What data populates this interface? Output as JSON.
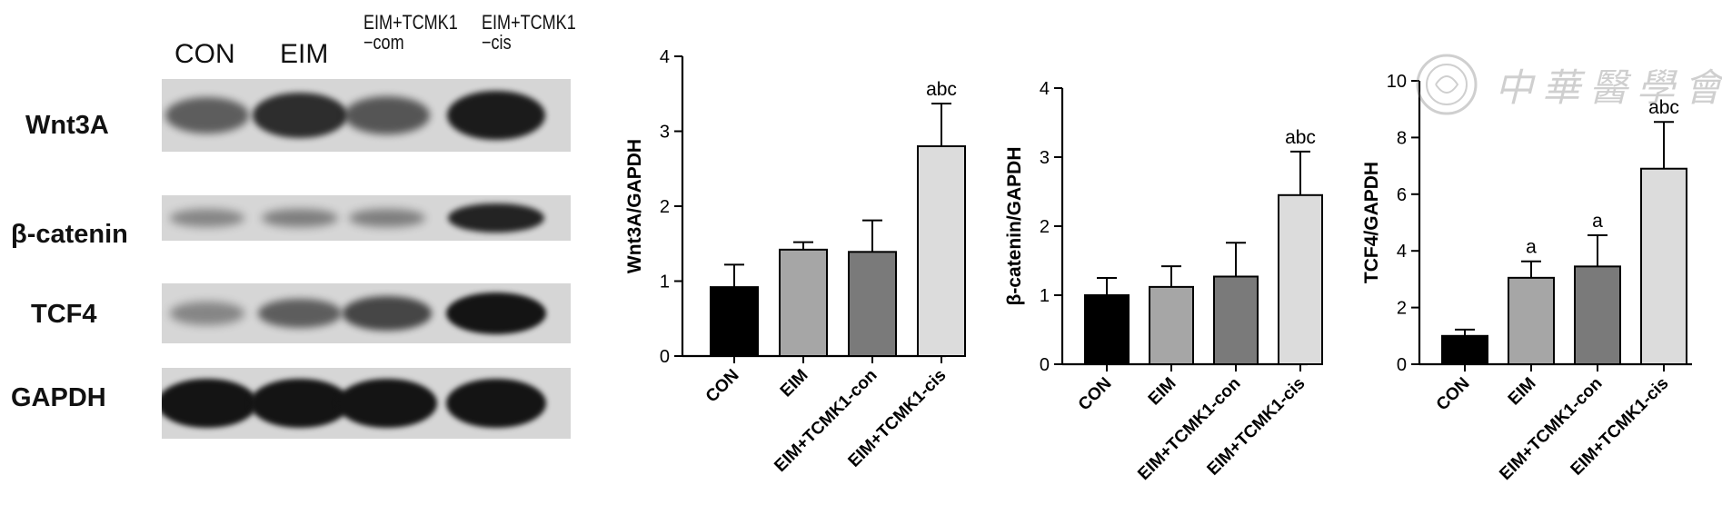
{
  "blot": {
    "lanes": [
      "CON",
      "EIM",
      "EIM+TCMK1\n−com",
      "EIM+TCMK1\n−cis"
    ],
    "rows": [
      {
        "label": "Wnt3A",
        "intensity": [
          0.55,
          0.85,
          0.6,
          0.95
        ]
      },
      {
        "label": "β-catenin",
        "intensity": [
          0.3,
          0.35,
          0.35,
          0.9
        ]
      },
      {
        "label": "TCF4",
        "intensity": [
          0.3,
          0.55,
          0.7,
          1.0
        ]
      },
      {
        "label": "GAPDH",
        "intensity": [
          1.0,
          1.0,
          1.0,
          1.0
        ]
      }
    ]
  },
  "watermark": {
    "text": "中華醫學會"
  },
  "chart_data": [
    {
      "type": "bar",
      "categories": [
        "CON",
        "EIM",
        "EIM+TCMK1-con",
        "EIM+TCMK1-cis"
      ],
      "values": [
        0.92,
        1.42,
        1.39,
        2.8
      ],
      "errors": [
        0.3,
        0.1,
        0.42,
        0.57
      ],
      "annotations": [
        "",
        "",
        "",
        "abc"
      ],
      "colors": [
        "#000000",
        "#a6a6a6",
        "#7a7a7a",
        "#dcdcdc"
      ],
      "ylabel": "Wnt3A/GAPDH",
      "ylim": [
        0,
        4
      ],
      "yticks": [
        "0",
        "1",
        "2",
        "3",
        "4"
      ]
    },
    {
      "type": "bar",
      "categories": [
        "CON",
        "EIM",
        "EIM+TCMK1-con",
        "EIM+TCMK1-cis"
      ],
      "values": [
        1.0,
        1.12,
        1.27,
        2.45
      ],
      "errors": [
        0.25,
        0.3,
        0.49,
        0.63
      ],
      "annotations": [
        "",
        "",
        "",
        "abc"
      ],
      "colors": [
        "#000000",
        "#a6a6a6",
        "#7a7a7a",
        "#dcdcdc"
      ],
      "ylabel": "β-catenin/GAPDH",
      "ylim": [
        0,
        4
      ],
      "yticks": [
        "0",
        "1",
        "2",
        "3",
        "4"
      ]
    },
    {
      "type": "bar",
      "categories": [
        "CON",
        "EIM",
        "EIM+TCMK1-con",
        "EIM+TCMK1-cis"
      ],
      "values": [
        1.0,
        3.05,
        3.45,
        6.9
      ],
      "errors": [
        0.22,
        0.58,
        1.1,
        1.65
      ],
      "annotations": [
        "",
        "a",
        "a",
        "abc"
      ],
      "colors": [
        "#000000",
        "#a6a6a6",
        "#7a7a7a",
        "#dcdcdc"
      ],
      "ylabel": "TCF4/GAPDH",
      "ylim": [
        0,
        10
      ],
      "yticks": [
        "0",
        "2",
        "4",
        "6",
        "8",
        "10"
      ]
    }
  ]
}
